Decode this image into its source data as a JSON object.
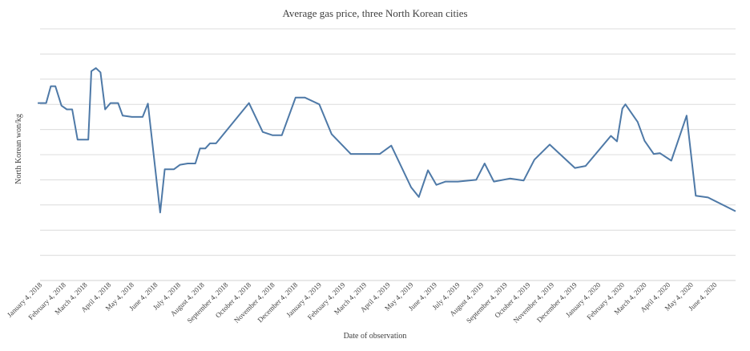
{
  "chart_data": {
    "type": "line",
    "title": "Average gas price, three North Korean cities",
    "xlabel": "Date of observation",
    "ylabel": "North Korean won/kg",
    "grid": true,
    "ylim": [
      0,
      10
    ],
    "y_gridlines": 10,
    "x_tick_labels": [
      "January 4, 2018",
      "February 4, 2018",
      "March 4, 2018",
      "April 4, 2018",
      "May 4, 2018",
      "June 4, 2018",
      "July 4, 2018",
      "August 4, 2018",
      "September 4, 2018",
      "October 4, 2018",
      "November 4, 2018",
      "December 4, 2018",
      "January 4, 2019",
      "February 4, 2019",
      "March 4, 2019",
      "April 4, 2019",
      "May 4, 2019",
      "June 4, 2019",
      "July 4, 2019",
      "August 4, 2019",
      "September 4, 2019",
      "October 4, 2019",
      "November 4, 2019",
      "December 4, 2019",
      "January 4, 2020",
      "February 4, 2020",
      "March 4, 2020",
      "April 4, 2020",
      "May 4, 2020",
      "June 4, 2020"
    ],
    "x_end": "July 1, 2020",
    "series": [
      {
        "color": "#4e79a7",
        "points": [
          [
            "2018-01-01",
            7.05
          ],
          [
            "2018-01-12",
            7.05
          ],
          [
            "2018-01-18",
            7.72
          ],
          [
            "2018-01-24",
            7.72
          ],
          [
            "2018-02-01",
            6.95
          ],
          [
            "2018-02-08",
            6.8
          ],
          [
            "2018-02-15",
            6.8
          ],
          [
            "2018-02-22",
            5.6
          ],
          [
            "2018-03-08",
            5.6
          ],
          [
            "2018-03-12",
            8.32
          ],
          [
            "2018-03-18",
            8.44
          ],
          [
            "2018-03-24",
            8.27
          ],
          [
            "2018-03-30",
            6.8
          ],
          [
            "2018-04-06",
            7.05
          ],
          [
            "2018-04-16",
            7.05
          ],
          [
            "2018-04-22",
            6.55
          ],
          [
            "2018-05-04",
            6.5
          ],
          [
            "2018-05-18",
            6.5
          ],
          [
            "2018-05-25",
            7.03
          ],
          [
            "2018-06-10",
            2.7
          ],
          [
            "2018-06-16",
            4.42
          ],
          [
            "2018-06-28",
            4.42
          ],
          [
            "2018-07-06",
            4.6
          ],
          [
            "2018-07-16",
            4.65
          ],
          [
            "2018-07-26",
            4.65
          ],
          [
            "2018-08-01",
            5.25
          ],
          [
            "2018-08-08",
            5.25
          ],
          [
            "2018-08-14",
            5.45
          ],
          [
            "2018-08-22",
            5.45
          ],
          [
            "2018-10-04",
            7.05
          ],
          [
            "2018-10-22",
            5.9
          ],
          [
            "2018-11-04",
            5.77
          ],
          [
            "2018-11-16",
            5.77
          ],
          [
            "2018-12-04",
            7.27
          ],
          [
            "2018-12-16",
            7.27
          ],
          [
            "2019-01-04",
            7.0
          ],
          [
            "2019-01-20",
            5.82
          ],
          [
            "2019-02-14",
            5.03
          ],
          [
            "2019-03-04",
            5.03
          ],
          [
            "2019-03-24",
            5.03
          ],
          [
            "2019-04-08",
            5.36
          ],
          [
            "2019-05-04",
            3.7
          ],
          [
            "2019-05-14",
            3.32
          ],
          [
            "2019-05-26",
            4.38
          ],
          [
            "2019-06-06",
            3.8
          ],
          [
            "2019-06-18",
            3.93
          ],
          [
            "2019-07-04",
            3.93
          ],
          [
            "2019-07-28",
            4.0
          ],
          [
            "2019-08-08",
            4.65
          ],
          [
            "2019-08-20",
            3.93
          ],
          [
            "2019-09-10",
            4.05
          ],
          [
            "2019-09-28",
            3.97
          ],
          [
            "2019-10-12",
            4.8
          ],
          [
            "2019-11-01",
            5.4
          ],
          [
            "2019-12-04",
            4.47
          ],
          [
            "2019-12-18",
            4.55
          ],
          [
            "2020-01-20",
            5.75
          ],
          [
            "2020-01-28",
            5.53
          ],
          [
            "2020-02-04",
            6.83
          ],
          [
            "2020-02-08",
            7.0
          ],
          [
            "2020-02-24",
            6.3
          ],
          [
            "2020-03-04",
            5.55
          ],
          [
            "2020-03-16",
            5.03
          ],
          [
            "2020-03-24",
            5.06
          ],
          [
            "2020-04-08",
            4.76
          ],
          [
            "2020-04-28",
            6.55
          ],
          [
            "2020-05-10",
            3.37
          ],
          [
            "2020-05-26",
            3.3
          ],
          [
            "2020-07-01",
            2.75
          ]
        ]
      }
    ]
  }
}
